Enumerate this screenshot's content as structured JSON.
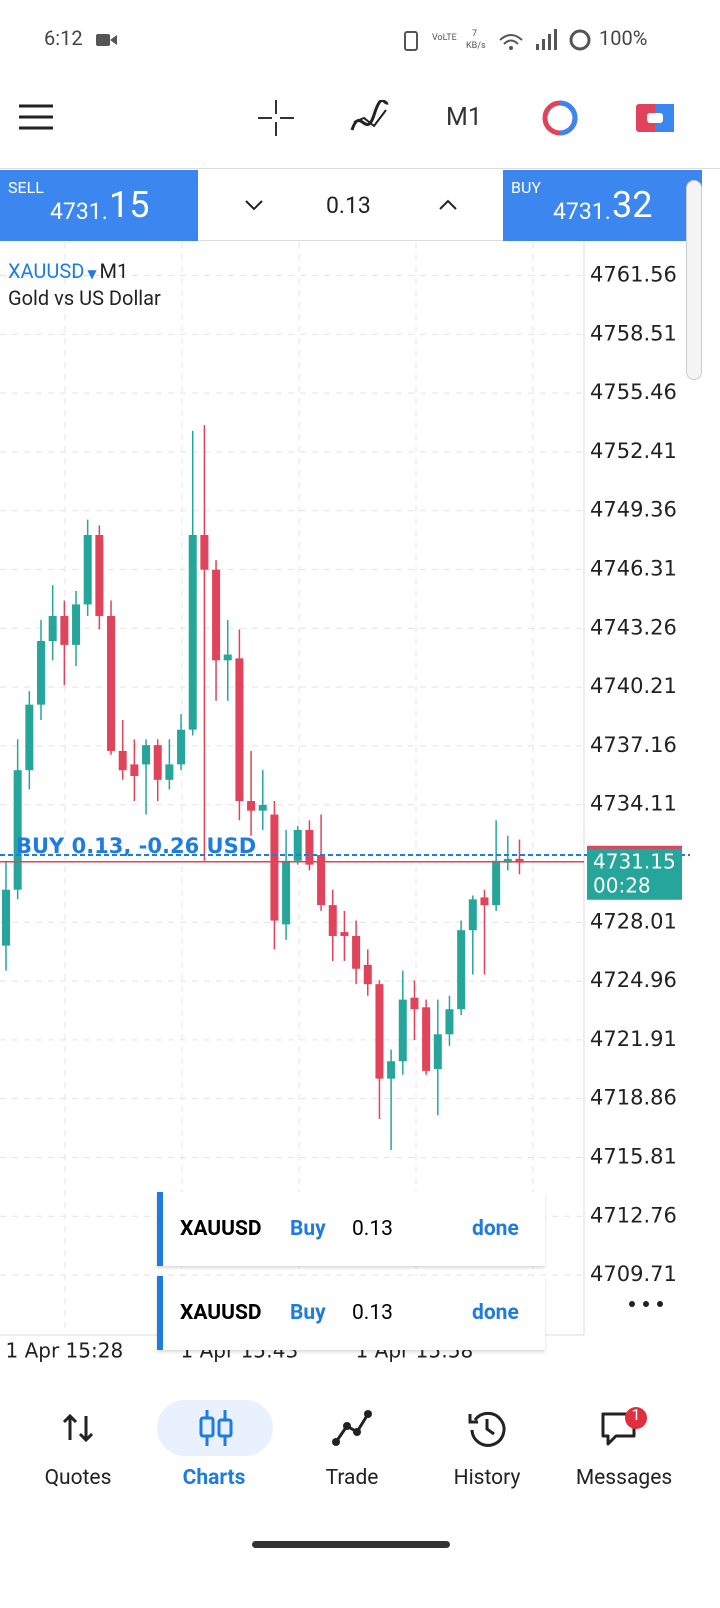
{
  "status": {
    "time": "6:12",
    "battery": "100%"
  },
  "toolbar": {
    "timeframe": "M1"
  },
  "trade_bar": {
    "sell_label": "SELL",
    "sell_price_main": "4731.",
    "sell_price_big": "15",
    "volume": "0.13",
    "buy_label": "BUY",
    "buy_price_main": "4731.",
    "buy_price_big": "32"
  },
  "chart_data": {
    "type": "candlestick",
    "symbol": "XAUUSD",
    "timeframe": "M1",
    "subtitle": "Gold vs US Dollar",
    "up_color": "#26a69a",
    "down_color": "#e0435a",
    "grid": true,
    "ylim": [
      4706.6,
      4763.3
    ],
    "yticks": [
      4761.56,
      4758.51,
      4755.46,
      4752.41,
      4749.36,
      4746.31,
      4743.26,
      4740.21,
      4737.16,
      4734.11,
      4728.01,
      4724.96,
      4721.91,
      4718.86,
      4715.81,
      4712.76,
      4709.71
    ],
    "xtick_labels": [
      "1 Apr 15:28",
      "1 Apr 15:43",
      "1 Apr 15:58"
    ],
    "current_price": 4731.15,
    "countdown": "00:28",
    "position_label": "BUY 0.13, -0.26 USD",
    "position_price": 4731.5,
    "candles": [
      [
        4726.8,
        4731.2,
        4725.5,
        4729.7
      ],
      [
        4729.7,
        4737.5,
        4729.2,
        4735.9
      ],
      [
        4735.9,
        4740.0,
        4734.9,
        4739.3
      ],
      [
        4739.3,
        4743.7,
        4738.5,
        4742.6
      ],
      [
        4742.6,
        4745.5,
        4741.6,
        4743.9
      ],
      [
        4743.9,
        4744.7,
        4740.3,
        4742.4
      ],
      [
        4742.4,
        4745.2,
        4741.3,
        4744.5
      ],
      [
        4744.5,
        4748.9,
        4743.9,
        4748.1
      ],
      [
        4748.1,
        4748.6,
        4743.2,
        4743.9
      ],
      [
        4743.9,
        4744.7,
        4736.7,
        4736.9
      ],
      [
        4736.9,
        4738.5,
        4735.4,
        4735.9
      ],
      [
        4736.2,
        4737.5,
        4734.3,
        4735.6
      ],
      [
        4736.2,
        4737.5,
        4733.6,
        4737.2
      ],
      [
        4737.2,
        4737.5,
        4734.3,
        4735.4
      ],
      [
        4735.4,
        4737.5,
        4734.9,
        4736.2
      ],
      [
        4736.2,
        4738.8,
        4735.9,
        4738.0
      ],
      [
        4738.0,
        4753.5,
        4737.7,
        4748.1
      ],
      [
        4748.1,
        4753.8,
        4731.2,
        4746.3
      ],
      [
        4746.3,
        4746.8,
        4739.5,
        4741.6
      ],
      [
        4741.6,
        4743.7,
        4739.5,
        4741.9
      ],
      [
        4741.7,
        4743.2,
        4733.3,
        4734.3
      ],
      [
        4734.3,
        4736.9,
        4732.5,
        4733.8
      ],
      [
        4733.8,
        4735.9,
        4732.8,
        4734.1
      ],
      [
        4733.6,
        4734.3,
        4726.6,
        4728.1
      ],
      [
        4727.9,
        4732.8,
        4727.1,
        4731.2
      ],
      [
        4731.2,
        4733.0,
        4731.0,
        4732.8
      ],
      [
        4732.8,
        4733.3,
        4730.7,
        4731.0
      ],
      [
        4731.5,
        4733.6,
        4728.6,
        4728.9
      ],
      [
        4728.9,
        4729.7,
        4726.0,
        4727.3
      ],
      [
        4727.5,
        4728.6,
        4726.0,
        4727.3
      ],
      [
        4727.3,
        4728.1,
        4724.8,
        4725.6
      ],
      [
        4725.8,
        4726.6,
        4724.2,
        4724.8
      ],
      [
        4724.8,
        4725.0,
        4717.8,
        4719.9
      ],
      [
        4719.9,
        4721.4,
        4716.2,
        4720.8
      ],
      [
        4720.8,
        4725.5,
        4720.1,
        4724.0
      ],
      [
        4724.1,
        4725.0,
        4721.9,
        4723.5
      ],
      [
        4723.6,
        4724.0,
        4720.1,
        4720.3
      ],
      [
        4720.4,
        4724.0,
        4718.0,
        4722.2
      ],
      [
        4722.2,
        4724.2,
        4721.6,
        4723.5
      ],
      [
        4723.5,
        4728.1,
        4723.2,
        4727.6
      ],
      [
        4727.6,
        4729.4,
        4725.3,
        4729.2
      ],
      [
        4729.3,
        4729.7,
        4725.3,
        4728.9
      ],
      [
        4728.9,
        4733.3,
        4728.6,
        4731.2
      ],
      [
        4731.1,
        4732.5,
        4730.7,
        4731.3
      ],
      [
        4731.3,
        4732.3,
        4730.5,
        4731.1
      ]
    ]
  },
  "notifications": [
    {
      "symbol": "XAUUSD",
      "side": "Buy",
      "volume": "0.13",
      "status": "done"
    },
    {
      "symbol": "XAUUSD",
      "side": "Buy",
      "volume": "0.13",
      "status": "done"
    }
  ],
  "nav": {
    "items": [
      "Quotes",
      "Charts",
      "Trade",
      "History",
      "Messages"
    ],
    "badge": "1"
  }
}
